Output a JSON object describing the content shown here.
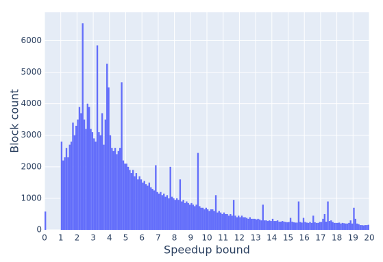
{
  "chart_data": {
    "type": "histogram",
    "x_label": "Speedup bound",
    "y_label": "Block count",
    "color": "#636efa",
    "grid": true,
    "xlim": [
      0,
      20
    ],
    "ylim": [
      0,
      6900
    ],
    "xticks": [
      0,
      1,
      2,
      3,
      4,
      5,
      6,
      7,
      8,
      9,
      10,
      11,
      12,
      13,
      14,
      15,
      16,
      17,
      18,
      19,
      20
    ],
    "yticks": [
      0,
      1000,
      2000,
      3000,
      4000,
      5000,
      6000
    ],
    "bins": [
      0,
      0.1,
      0.2,
      0.3,
      0.4,
      0.5,
      0.6,
      0.7,
      0.8,
      0.9,
      1,
      1.1,
      1.2,
      1.3,
      1.4,
      1.5,
      1.6,
      1.7,
      1.8,
      1.9,
      2,
      2.1,
      2.2,
      2.3,
      2.4,
      2.5,
      2.6,
      2.7,
      2.8,
      2.9,
      3,
      3.1,
      3.2,
      3.3,
      3.4,
      3.5,
      3.6,
      3.7,
      3.8,
      3.9,
      4,
      4.1,
      4.2,
      4.3,
      4.4,
      4.5,
      4.6,
      4.7,
      4.8,
      4.9,
      5,
      5.1,
      5.2,
      5.3,
      5.4,
      5.5,
      5.6,
      5.7,
      5.8,
      5.9,
      6,
      6.1,
      6.2,
      6.3,
      6.4,
      6.5,
      6.6,
      6.7,
      6.8,
      6.9,
      7,
      7.1,
      7.2,
      7.3,
      7.4,
      7.5,
      7.6,
      7.7,
      7.8,
      7.9,
      8,
      8.1,
      8.2,
      8.3,
      8.4,
      8.5,
      8.6,
      8.7,
      8.8,
      8.9,
      9,
      9.1,
      9.2,
      9.3,
      9.4,
      9.5,
      9.6,
      9.7,
      9.8,
      9.9,
      10,
      10.1,
      10.2,
      10.3,
      10.4,
      10.5,
      10.6,
      10.7,
      10.8,
      10.9,
      11,
      11.1,
      11.2,
      11.3,
      11.4,
      11.5,
      11.6,
      11.7,
      11.8,
      11.9,
      12,
      12.1,
      12.2,
      12.3,
      12.4,
      12.5,
      12.6,
      12.7,
      12.8,
      12.9,
      13,
      13.1,
      13.2,
      13.3,
      13.4,
      13.5,
      13.6,
      13.7,
      13.8,
      13.9,
      14,
      14.1,
      14.2,
      14.3,
      14.4,
      14.5,
      14.6,
      14.7,
      14.8,
      14.9,
      15,
      15.1,
      15.2,
      15.3,
      15.4,
      15.5,
      15.6,
      15.7,
      15.8,
      15.9,
      16,
      16.1,
      16.2,
      16.3,
      16.4,
      16.5,
      16.6,
      16.7,
      16.8,
      16.9,
      17,
      17.1,
      17.2,
      17.3,
      17.4,
      17.5,
      17.6,
      17.7,
      17.8,
      17.9,
      18,
      18.1,
      18.2,
      18.3,
      18.4,
      18.5,
      18.6,
      18.7,
      18.8,
      18.9,
      19,
      19.1,
      19.2,
      19.3,
      19.4,
      19.5,
      19.6,
      19.7,
      19.8,
      19.9,
      20
    ],
    "values": [
      580,
      0,
      0,
      0,
      0,
      0,
      0,
      0,
      0,
      0,
      2800,
      2200,
      2300,
      2600,
      2300,
      2700,
      2800,
      3400,
      3000,
      3300,
      3500,
      3900,
      3700,
      6550,
      3500,
      3200,
      4000,
      3900,
      3200,
      3100,
      2900,
      2800,
      5850,
      3100,
      3000,
      3700,
      2700,
      3500,
      5270,
      4520,
      3000,
      2600,
      2500,
      2600,
      2400,
      2500,
      2600,
      4680,
      2200,
      2100,
      2100,
      2000,
      1900,
      1800,
      1900,
      1700,
      1800,
      1600,
      1700,
      1600,
      1500,
      1550,
      1450,
      1400,
      1500,
      1350,
      1300,
      1250,
      2050,
      1200,
      1150,
      1200,
      1100,
      1150,
      1050,
      1100,
      1000,
      2000,
      1050,
      1000,
      950,
      1000,
      950,
      1600,
      900,
      950,
      850,
      900,
      850,
      800,
      850,
      800,
      750,
      800,
      2440,
      750,
      700,
      700,
      650,
      700,
      650,
      600,
      650,
      650,
      600,
      1100,
      550,
      600,
      550,
      500,
      550,
      500,
      500,
      450,
      500,
      450,
      950,
      450,
      400,
      450,
      400,
      450,
      400,
      400,
      380,
      350,
      400,
      350,
      350,
      350,
      330,
      350,
      330,
      300,
      800,
      300,
      300,
      280,
      300,
      280,
      350,
      280,
      280,
      300,
      260,
      260,
      280,
      260,
      250,
      240,
      250,
      380,
      260,
      240,
      230,
      230,
      900,
      250,
      230,
      380,
      250,
      230,
      220,
      250,
      220,
      450,
      240,
      220,
      220,
      250,
      250,
      350,
      500,
      260,
      900,
      280,
      300,
      250,
      220,
      220,
      220,
      230,
      200,
      220,
      210,
      200,
      200,
      220,
      300,
      200,
      700,
      350,
      200,
      180,
      150,
      150,
      140,
      150,
      150,
      160
    ]
  }
}
